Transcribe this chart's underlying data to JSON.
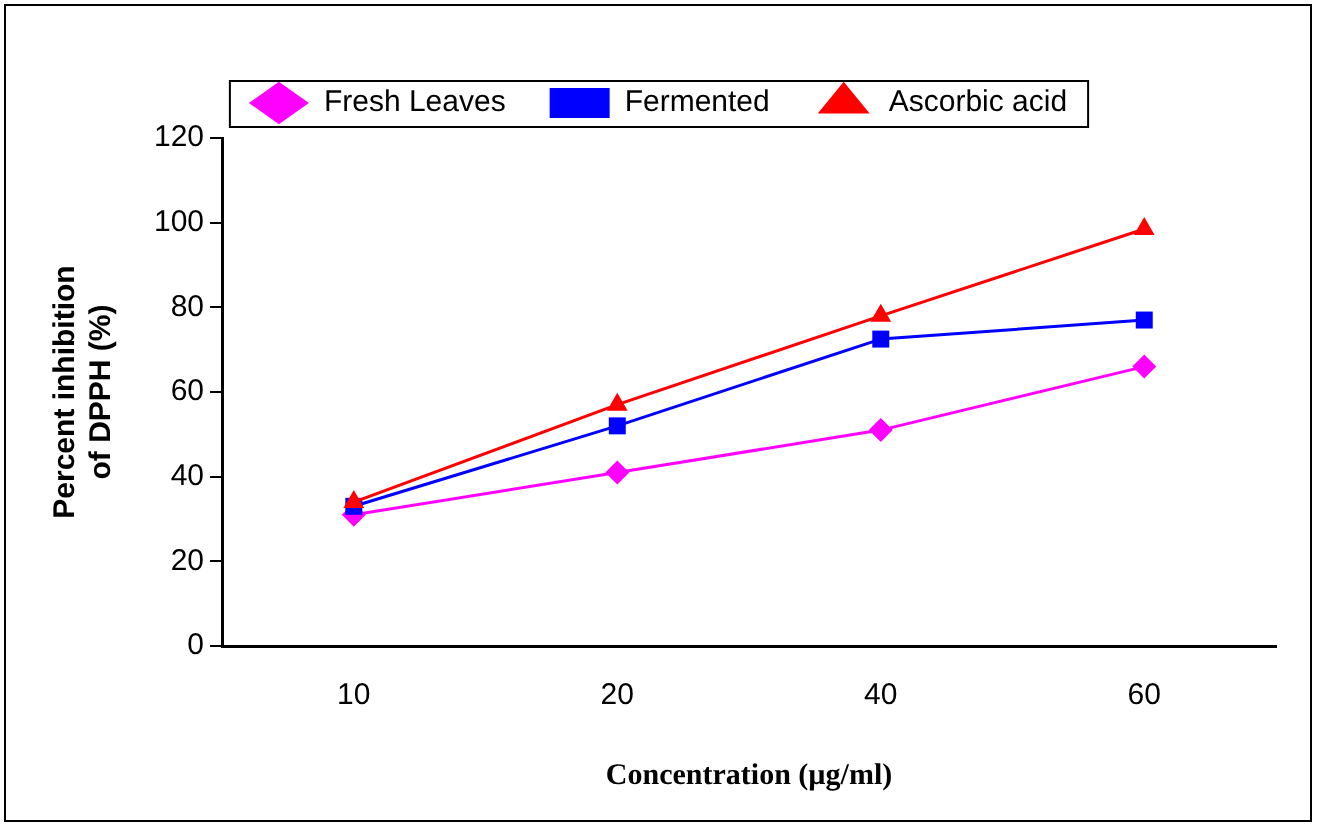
{
  "chart_data": {
    "type": "line",
    "xlabel": "Concentration (µg/ml)",
    "ylabel": "Percent inhibition\nof DPPH (%)",
    "categories": [
      "10",
      "20",
      "40",
      "60"
    ],
    "series": [
      {
        "name": "Fresh Leaves",
        "color": "#ff00ff",
        "marker": "diamond",
        "values": [
          31,
          41,
          51,
          66
        ]
      },
      {
        "name": "Fermented",
        "color": "#0000ff",
        "marker": "square",
        "values": [
          33,
          52,
          72.5,
          77
        ]
      },
      {
        "name": "Ascorbic acid",
        "color": "#ff0000",
        "marker": "triangle",
        "values": [
          34,
          57,
          78,
          98.5
        ]
      }
    ],
    "ylim": [
      0,
      120
    ],
    "yticks": [
      0,
      20,
      40,
      60,
      80,
      100,
      120
    ],
    "grid": false,
    "legend": "top",
    "line_style": "solid"
  }
}
